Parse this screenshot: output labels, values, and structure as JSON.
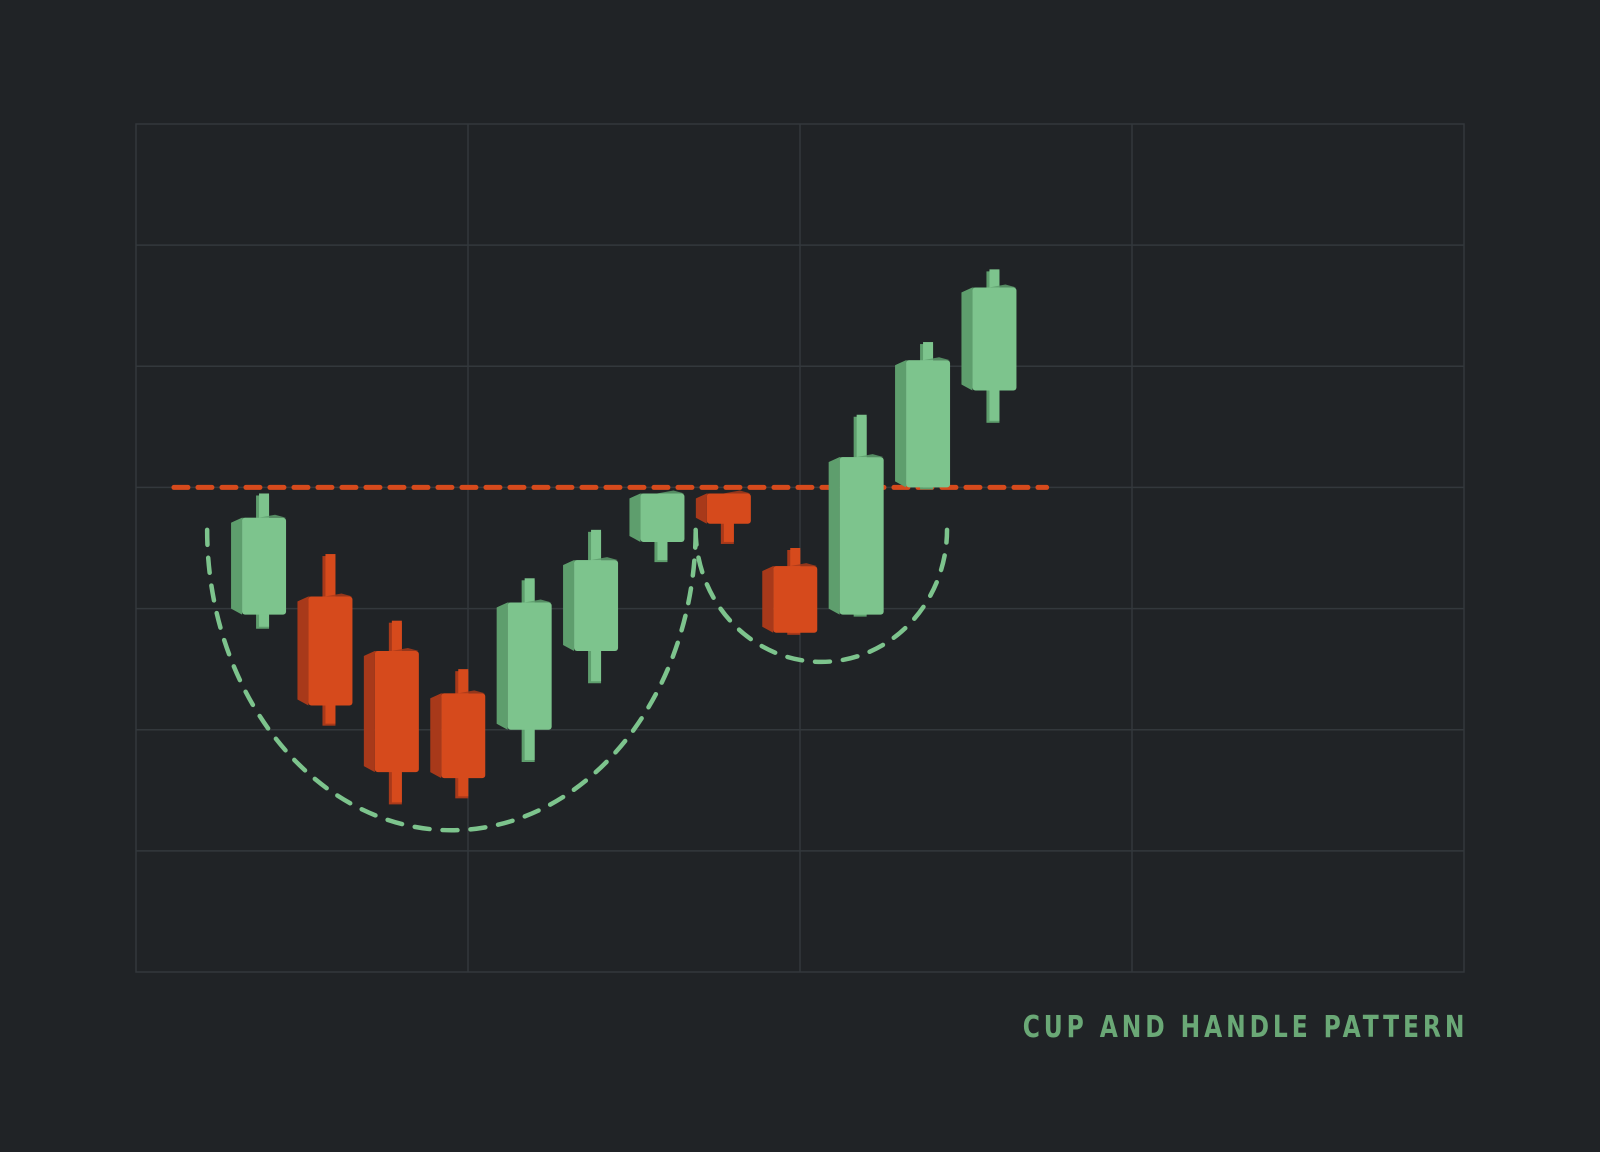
{
  "colors": {
    "background": "#202326",
    "grid": "#33383c",
    "bullish": "#7dc48d",
    "bullish_side": "#5e9e6d",
    "bearish": "#d64a1c",
    "bearish_side": "#a8391a",
    "resistance": "#d64a1c",
    "pattern_curve": "#7dc48d",
    "title": "#6aa876"
  },
  "chart_data": {
    "type": "candlestick",
    "title": "CUP AND HANDLE PATTERN",
    "xlabel": "",
    "ylabel": "",
    "axis_labels_shown": false,
    "grid": true,
    "grid_columns": 4,
    "grid_rows": 7,
    "xlim": [
      0,
      14
    ],
    "ylim": [
      0,
      7
    ],
    "resistance_level": 4.0,
    "resistance_x": [
      0.4,
      9.6
    ],
    "candles": [
      {
        "x": 1.35,
        "open": 2.95,
        "close": 3.75,
        "high": 3.95,
        "low": 2.85,
        "direction": "up"
      },
      {
        "x": 2.05,
        "open": 3.1,
        "close": 2.2,
        "high": 3.45,
        "low": 2.05,
        "direction": "down"
      },
      {
        "x": 2.75,
        "open": 2.65,
        "close": 1.65,
        "high": 2.9,
        "low": 1.4,
        "direction": "down"
      },
      {
        "x": 3.45,
        "open": 2.3,
        "close": 1.6,
        "high": 2.5,
        "low": 1.45,
        "direction": "down"
      },
      {
        "x": 4.15,
        "open": 2.0,
        "close": 3.05,
        "high": 3.25,
        "low": 1.75,
        "direction": "up"
      },
      {
        "x": 4.85,
        "open": 2.65,
        "close": 3.4,
        "high": 3.65,
        "low": 2.4,
        "direction": "up"
      },
      {
        "x": 5.55,
        "open": 3.55,
        "close": 3.95,
        "high": 3.95,
        "low": 3.4,
        "direction": "up"
      },
      {
        "x": 6.25,
        "open": 3.95,
        "close": 3.7,
        "high": 3.95,
        "low": 3.55,
        "direction": "down"
      },
      {
        "x": 6.95,
        "open": 3.35,
        "close": 2.8,
        "high": 3.5,
        "low": 2.8,
        "direction": "down"
      },
      {
        "x": 7.65,
        "open": 2.95,
        "close": 4.25,
        "high": 4.6,
        "low": 2.95,
        "direction": "up"
      },
      {
        "x": 8.35,
        "open": 4.0,
        "close": 5.05,
        "high": 5.2,
        "low": 4.0,
        "direction": "up"
      },
      {
        "x": 9.05,
        "open": 4.8,
        "close": 5.65,
        "high": 5.8,
        "low": 4.55,
        "direction": "up"
      }
    ],
    "annotations": [
      {
        "type": "cup-curve",
        "from_x": 0.75,
        "to_x": 5.9,
        "top_y": 3.65,
        "bottom_y": 1.17
      },
      {
        "type": "handle-curve",
        "from_x": 5.9,
        "to_x": 8.55,
        "top_y": 3.65,
        "bottom_y": 2.56
      }
    ]
  }
}
